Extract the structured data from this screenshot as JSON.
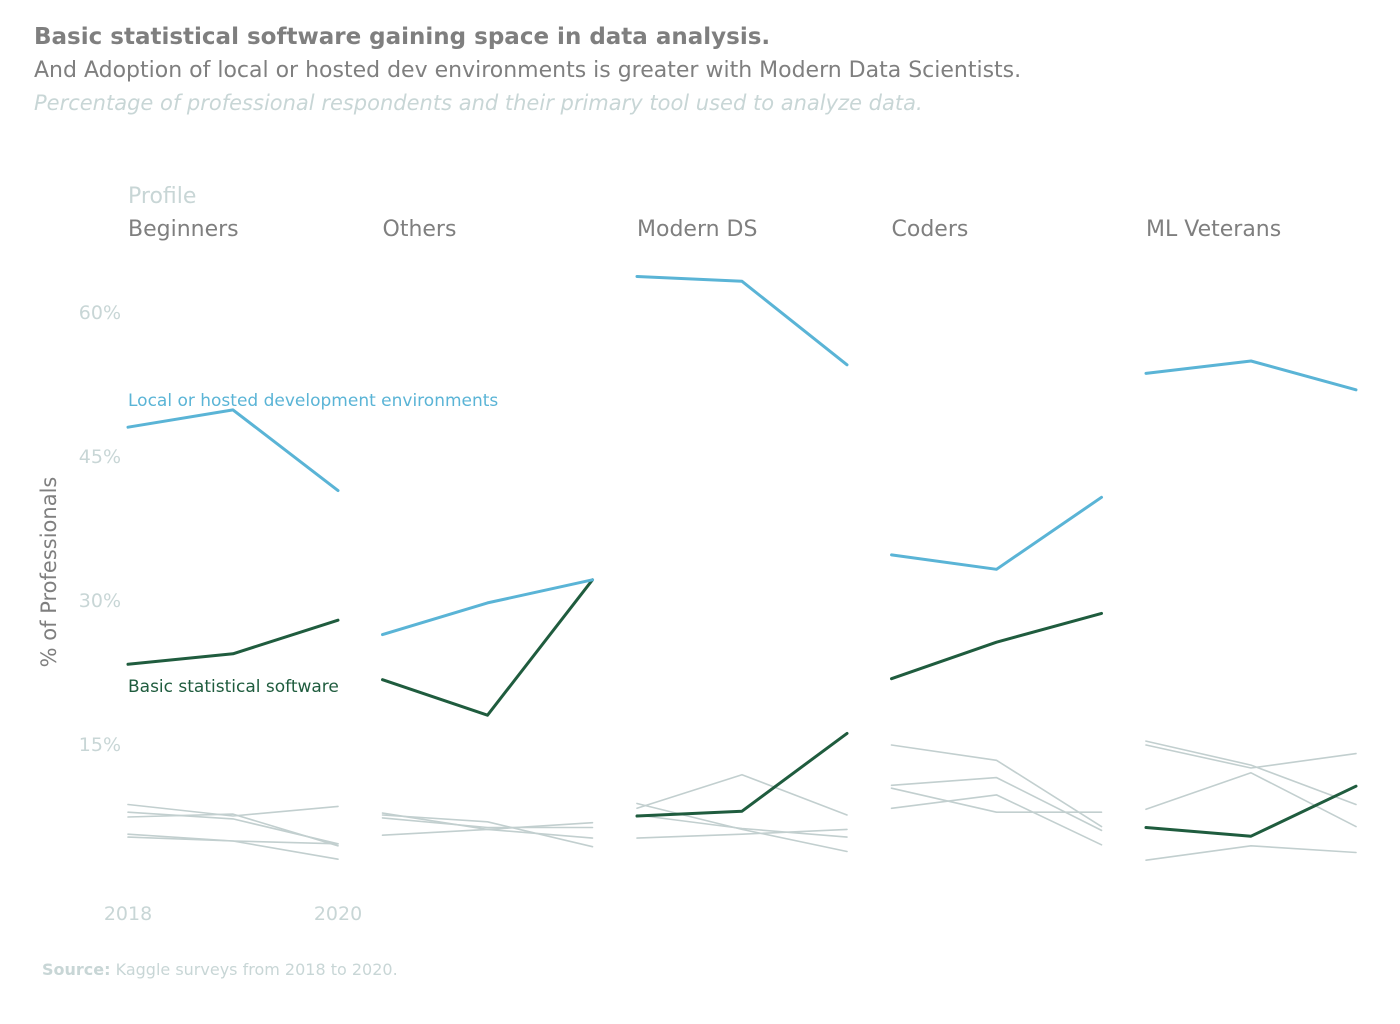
{
  "header": {
    "title": "Basic statistical software gaining space in data analysis.",
    "subtitle": "And Adoption of local or hosted dev environments is greater with Modern Data Scientists.",
    "caption": "Percentage of professional respondents and their primary tool used to analyze data."
  },
  "footer": {
    "source_label": "Source:",
    "source_text": "Kaggle surveys from 2018 to 2020."
  },
  "colors": {
    "local_env": "#5ab4d6",
    "basic_stat": "#1f5c3e",
    "other": "#c2cfcf",
    "axis_text": "#c8d6d6",
    "panel_text": "#7f7f7f"
  },
  "chart_data": {
    "type": "line",
    "facet_title": "Profile",
    "ylabel": "% of Professionals",
    "ylim": [
      0,
      66
    ],
    "yticks": [
      15,
      30,
      45,
      60
    ],
    "ytick_labels": [
      "15%",
      "30%",
      "45%",
      "60%"
    ],
    "x": [
      2018,
      2019,
      2020
    ],
    "xtick_labels": [
      "2018",
      "2020"
    ],
    "highlight_labels": {
      "local_env": "Local or hosted development environments",
      "basic_stat": "Basic statistical software"
    },
    "panels": [
      {
        "name": "Beginners",
        "highlight": {
          "local_env": [
            48.0,
            49.8,
            41.4
          ],
          "basic_stat": [
            23.3,
            24.4,
            27.9
          ]
        },
        "others": [
          [
            8.7,
            7.5,
            8.5
          ],
          [
            7.9,
            7.2,
            4.6
          ],
          [
            7.4,
            7.7,
            4.4
          ],
          [
            5.6,
            4.9,
            3.0
          ],
          [
            5.3,
            4.9,
            4.6
          ]
        ]
      },
      {
        "name": "Others",
        "highlight": {
          "local_env": [
            26.4,
            29.7,
            32.1
          ],
          "basic_stat": [
            21.7,
            18.0,
            32.1
          ]
        },
        "others": [
          [
            7.8,
            6.1,
            5.2
          ],
          [
            7.6,
            6.9,
            4.3
          ],
          [
            7.3,
            6.3,
            6.3
          ],
          [
            5.5,
            6.1,
            6.8
          ]
        ]
      },
      {
        "name": "Modern DS",
        "highlight": {
          "local_env": [
            63.7,
            63.2,
            54.5
          ],
          "basic_stat": [
            7.5,
            8.0,
            16.1
          ]
        },
        "others": [
          [
            8.8,
            6.1,
            3.8
          ],
          [
            8.3,
            11.8,
            7.6
          ],
          [
            5.2,
            5.6,
            6.1
          ],
          [
            7.6,
            6.2,
            5.3
          ]
        ]
      },
      {
        "name": "Coders",
        "highlight": {
          "local_env": [
            34.7,
            33.2,
            40.7
          ],
          "basic_stat": [
            21.8,
            25.6,
            28.6
          ]
        },
        "others": [
          [
            14.9,
            13.3,
            6.4
          ],
          [
            10.7,
            11.5,
            6.0
          ],
          [
            10.4,
            7.9,
            7.9
          ],
          [
            8.3,
            9.7,
            4.5
          ]
        ]
      },
      {
        "name": "ML Veterans",
        "highlight": {
          "local_env": [
            53.6,
            54.9,
            51.9
          ],
          "basic_stat": [
            6.3,
            5.4,
            10.6
          ]
        },
        "others": [
          [
            15.3,
            12.8,
            8.7
          ],
          [
            14.9,
            12.5,
            14.0
          ],
          [
            8.2,
            12.0,
            6.4
          ],
          [
            2.9,
            4.4,
            3.7
          ]
        ]
      }
    ]
  }
}
